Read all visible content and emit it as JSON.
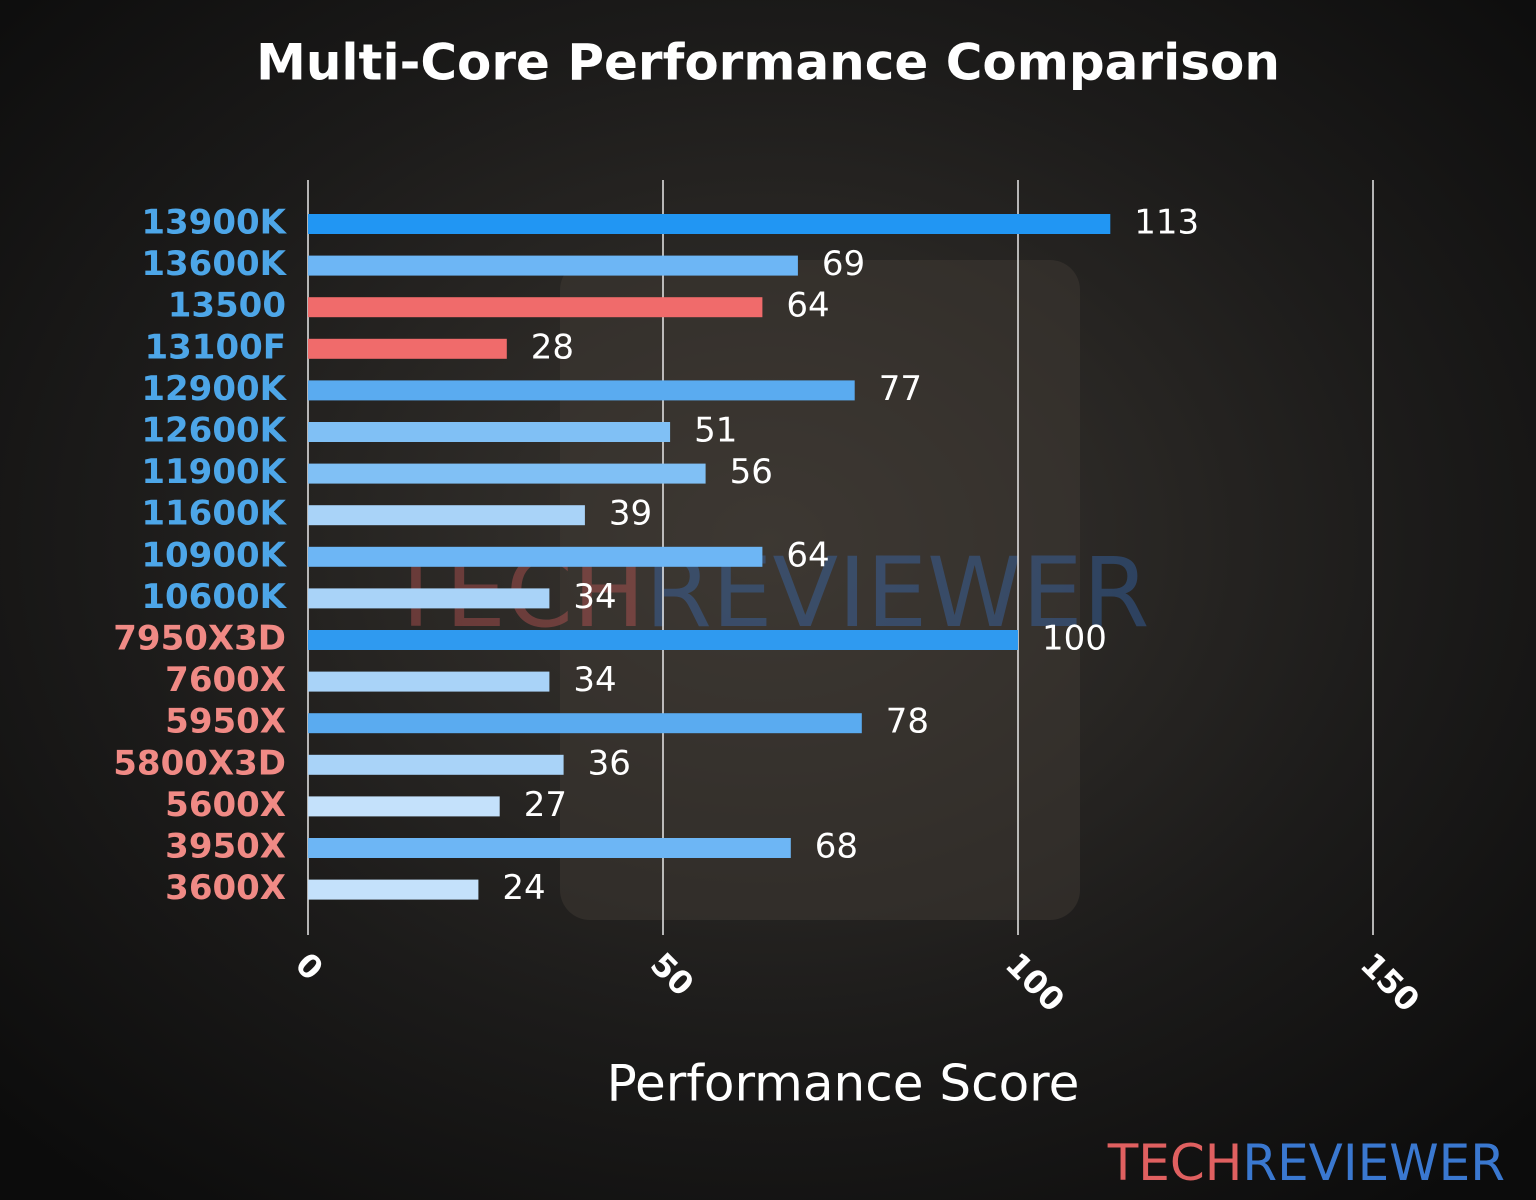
{
  "chart_data": {
    "type": "barh",
    "title": "Multi-Core Performance Comparison",
    "x_label": "Performance Score",
    "categories": [
      "13900K",
      "13600K",
      "13500",
      "13100F",
      "12900K",
      "12600K",
      "11900K",
      "11600K",
      "10900K",
      "10600K",
      "7950X3D",
      "7600X",
      "5950X",
      "5800X3D",
      "5600X",
      "3950X",
      "3600X"
    ],
    "values": [
      113,
      69,
      64,
      28,
      77,
      51,
      56,
      39,
      64,
      34,
      100,
      34,
      78,
      36,
      27,
      68,
      24
    ],
    "colors": [
      "#2196f3",
      "#6db6f5",
      "#f06b6b",
      "#f06b6b",
      "#5aabf0",
      "#80c0f5",
      "#80c0f5",
      "#a9d3f8",
      "#6db6f5",
      "#a9d3f8",
      "#2f9af0",
      "#a9d3f8",
      "#5aabf0",
      "#a9d3f8",
      "#c4e1fb",
      "#6db6f5",
      "#c4e1fb"
    ],
    "category_colors": [
      "#4da6e8",
      "#4da6e8",
      "#4da6e8",
      "#4da6e8",
      "#4da6e8",
      "#4da6e8",
      "#4da6e8",
      "#4da6e8",
      "#4da6e8",
      "#4da6e8",
      "#f08a85",
      "#f08a85",
      "#f08a85",
      "#f08a85",
      "#f08a85",
      "#f08a85",
      "#f08a85"
    ],
    "xlim": [
      0,
      150
    ],
    "xticks": [
      0,
      50,
      100,
      150
    ],
    "grid": true,
    "watermark": [
      {
        "text": "TECH",
        "color": "#e06060"
      },
      {
        "text": "REVIEWER",
        "color": "#3a78d0"
      }
    ]
  }
}
